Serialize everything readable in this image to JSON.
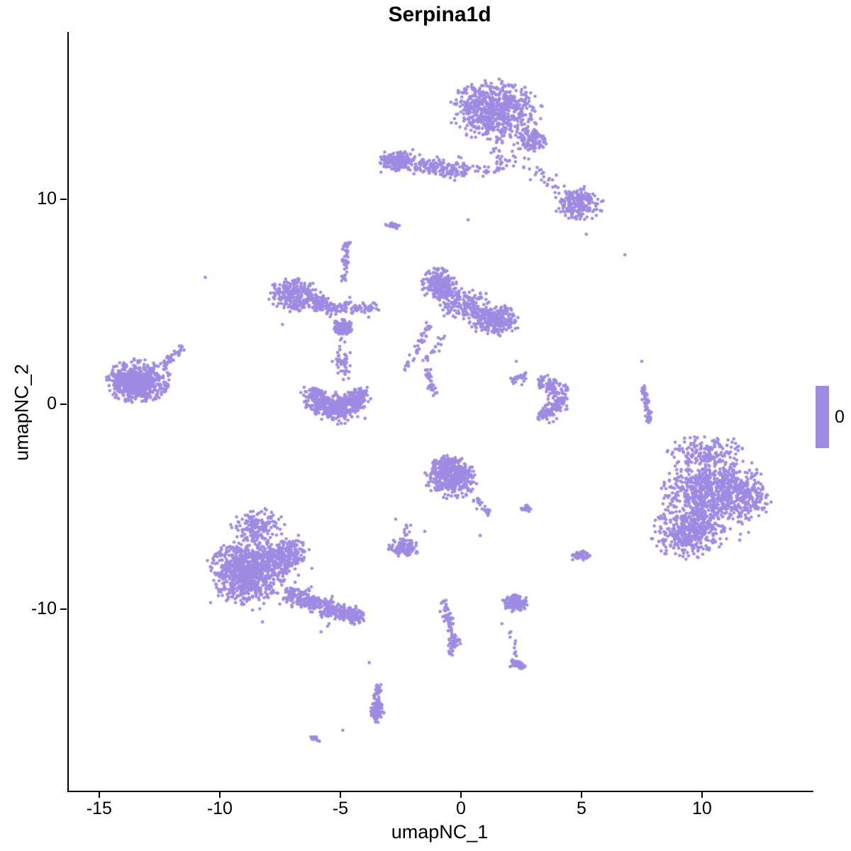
{
  "chart_data": {
    "type": "scatter",
    "title": "Serpina1d",
    "xlabel": "umapNC_1",
    "ylabel": "umapNC_2",
    "xlim": [
      -16.32,
      14.56
    ],
    "ylim": [
      -18.85,
      18.17
    ],
    "xticks": [
      -15,
      -10,
      -5,
      0,
      5,
      10
    ],
    "yticks": [
      -10,
      0,
      10
    ],
    "grid": false,
    "background": "#ffffff",
    "point_color": "#9E8BE2",
    "point_radius_px": 2.3,
    "legend": {
      "label": "0",
      "position": "right",
      "color": "#9E8BE2"
    },
    "note": "UMAP feature plot; all cells share expression value 0 (single purple color). Clusters described as generative blobs/strands/arcs in data coordinates.",
    "clusters": [
      {
        "t": "blob",
        "x": 1.4,
        "y": 14.3,
        "rx": 1.9,
        "ry": 1.5,
        "n": 700
      },
      {
        "t": "blob",
        "x": 2.9,
        "y": 12.9,
        "rx": 0.8,
        "ry": 0.6,
        "n": 110
      },
      {
        "t": "strand",
        "x1": 1.3,
        "y1": 13.0,
        "x2": 1.7,
        "y2": 11.4,
        "w": 0.3,
        "n": 25
      },
      {
        "t": "strand",
        "x1": 1.9,
        "y1": 12.2,
        "x2": 4.3,
        "y2": 10.6,
        "w": 0.5,
        "n": 35
      },
      {
        "t": "blob",
        "x": 4.9,
        "y": 9.8,
        "rx": 1.0,
        "ry": 0.85,
        "n": 210
      },
      {
        "t": "strand",
        "x1": -3.3,
        "y1": 11.9,
        "x2": 0.3,
        "y2": 11.4,
        "w": 0.5,
        "n": 260
      },
      {
        "t": "blob",
        "x": -2.6,
        "y": 11.9,
        "rx": 0.6,
        "ry": 0.5,
        "n": 120
      },
      {
        "t": "strand",
        "x1": 0.3,
        "y1": 11.6,
        "x2": 1.5,
        "y2": 11.3,
        "w": 0.3,
        "n": 20
      },
      {
        "t": "blob",
        "x": -2.85,
        "y": 8.7,
        "rx": 0.3,
        "ry": 0.15,
        "n": 28
      },
      {
        "t": "blob",
        "x": -6.9,
        "y": 5.4,
        "rx": 1.15,
        "ry": 0.85,
        "n": 260
      },
      {
        "t": "blob",
        "x": -5.9,
        "y": 5.0,
        "rx": 0.6,
        "ry": 0.5,
        "n": 80
      },
      {
        "t": "strand",
        "x1": -5.6,
        "y1": 4.7,
        "x2": -3.4,
        "y2": 4.7,
        "w": 0.35,
        "n": 110
      },
      {
        "t": "blob",
        "x": -4.9,
        "y": 3.75,
        "rx": 0.42,
        "ry": 0.42,
        "n": 130
      },
      {
        "t": "strand",
        "x1": -4.75,
        "y1": 7.9,
        "x2": -4.85,
        "y2": 6.0,
        "w": 0.15,
        "n": 45
      },
      {
        "t": "strand",
        "x1": -5.0,
        "y1": 3.3,
        "x2": -4.9,
        "y2": 1.9,
        "w": 0.25,
        "n": 16
      },
      {
        "t": "blob",
        "x": -0.9,
        "y": 5.8,
        "rx": 0.75,
        "ry": 0.85,
        "n": 260
      },
      {
        "t": "blob",
        "x": 1.4,
        "y": 4.1,
        "rx": 1.05,
        "ry": 0.75,
        "n": 280
      },
      {
        "t": "blob",
        "x": 0.2,
        "y": 4.9,
        "rx": 1.1,
        "ry": 0.9,
        "n": 160
      },
      {
        "t": "strand",
        "x1": -1.3,
        "y1": 3.9,
        "x2": -2.3,
        "y2": 1.7,
        "w": 0.2,
        "n": 40
      },
      {
        "t": "strand",
        "x1": -0.7,
        "y1": 3.3,
        "x2": -1.5,
        "y2": 2.1,
        "w": 0.15,
        "n": 20
      },
      {
        "t": "strand",
        "x1": -1.4,
        "y1": 1.7,
        "x2": -1.15,
        "y2": 0.5,
        "w": 0.15,
        "n": 35
      },
      {
        "t": "arc",
        "x": -5.15,
        "y": 0.55,
        "r": 0.95,
        "a1": 165,
        "a2": 375,
        "w": 0.6,
        "n": 430
      },
      {
        "t": "arc",
        "x": -5.15,
        "y": 0.5,
        "r": 0.55,
        "a1": 200,
        "a2": 340,
        "w": 0.45,
        "n": 160
      },
      {
        "t": "blob",
        "x": -4.9,
        "y": 1.9,
        "rx": 0.5,
        "ry": 0.75,
        "n": 30
      },
      {
        "t": "blob",
        "x": -13.4,
        "y": 1.15,
        "rx": 1.35,
        "ry": 1.05,
        "n": 520
      },
      {
        "t": "blob",
        "x": -13.6,
        "y": 1.0,
        "rx": 0.8,
        "ry": 0.6,
        "n": 200
      },
      {
        "t": "strand",
        "x1": -12.4,
        "y1": 1.9,
        "x2": -11.5,
        "y2": 2.85,
        "w": 0.18,
        "n": 40
      },
      {
        "t": "arc",
        "x": 3.35,
        "y": 0.3,
        "r": 0.8,
        "a1": -100,
        "a2": 100,
        "w": 0.5,
        "n": 210
      },
      {
        "t": "blob",
        "x": 2.4,
        "y": 1.3,
        "rx": 0.45,
        "ry": 0.35,
        "n": 30
      },
      {
        "t": "strand",
        "x1": 7.55,
        "y1": 1.0,
        "x2": 7.85,
        "y2": -0.9,
        "w": 0.12,
        "n": 50
      },
      {
        "t": "blob",
        "x": 10.4,
        "y": -4.3,
        "rx": 2.0,
        "ry": 1.9,
        "n": 750
      },
      {
        "t": "blob",
        "x": 9.4,
        "y": -6.3,
        "rx": 1.5,
        "ry": 1.2,
        "n": 380
      },
      {
        "t": "blob",
        "x": 10.2,
        "y": -2.3,
        "rx": 1.7,
        "ry": 0.8,
        "n": 140
      },
      {
        "t": "blob",
        "x": 12.0,
        "y": -4.5,
        "rx": 0.9,
        "ry": 1.2,
        "n": 120
      },
      {
        "t": "blob",
        "x": 10.3,
        "y": -4.5,
        "rx": 2.6,
        "ry": 2.6,
        "n": 100
      },
      {
        "t": "blob",
        "x": -0.4,
        "y": -3.6,
        "rx": 1.1,
        "ry": 1.0,
        "n": 340
      },
      {
        "t": "blob",
        "x": -0.5,
        "y": -3.0,
        "rx": 0.8,
        "ry": 0.5,
        "n": 120
      },
      {
        "t": "strand",
        "x1": 0.6,
        "y1": -4.6,
        "x2": 1.2,
        "y2": -5.4,
        "w": 0.2,
        "n": 25
      },
      {
        "t": "blob",
        "x": 2.7,
        "y": -5.1,
        "rx": 0.25,
        "ry": 0.18,
        "n": 18
      },
      {
        "t": "blob",
        "x": -2.4,
        "y": -7.0,
        "rx": 0.65,
        "ry": 0.45,
        "n": 100
      },
      {
        "t": "strand",
        "x1": -2.3,
        "y1": -6.4,
        "x2": -2.2,
        "y2": -5.9,
        "w": 0.1,
        "n": 10
      },
      {
        "t": "blob",
        "x": 4.95,
        "y": -7.4,
        "rx": 0.4,
        "ry": 0.28,
        "n": 50
      },
      {
        "t": "blob",
        "x": -8.8,
        "y": -8.1,
        "rx": 1.55,
        "ry": 1.6,
        "n": 850
      },
      {
        "t": "blob",
        "x": -8.4,
        "y": -5.9,
        "rx": 1.1,
        "ry": 0.8,
        "n": 170
      },
      {
        "t": "blob",
        "x": -7.2,
        "y": -7.3,
        "rx": 0.9,
        "ry": 0.9,
        "n": 180
      },
      {
        "t": "strand",
        "x1": -7.2,
        "y1": -9.2,
        "x2": -4.9,
        "y2": -10.2,
        "w": 0.55,
        "n": 280
      },
      {
        "t": "blob",
        "x": -4.5,
        "y": -10.3,
        "rx": 0.55,
        "ry": 0.45,
        "n": 110
      },
      {
        "t": "blob",
        "x": -8.6,
        "y": -8.0,
        "rx": 2.4,
        "ry": 2.6,
        "n": 130
      },
      {
        "t": "strand",
        "x1": -0.75,
        "y1": -9.6,
        "x2": -0.35,
        "y2": -11.3,
        "w": 0.18,
        "n": 45
      },
      {
        "t": "blob",
        "x": -0.3,
        "y": -11.6,
        "rx": 0.28,
        "ry": 0.35,
        "n": 45
      },
      {
        "t": "strand",
        "x1": -0.4,
        "y1": -11.9,
        "x2": -0.5,
        "y2": -12.4,
        "w": 0.1,
        "n": 8
      },
      {
        "t": "blob",
        "x": 2.25,
        "y": -9.7,
        "rx": 0.55,
        "ry": 0.42,
        "n": 140
      },
      {
        "t": "blob",
        "x": 2.35,
        "y": -12.7,
        "rx": 0.38,
        "ry": 0.28,
        "n": 60
      },
      {
        "t": "strand",
        "x1": 2.0,
        "y1": -10.9,
        "x2": 2.3,
        "y2": -12.3,
        "w": 0.12,
        "n": 10
      },
      {
        "t": "strand",
        "x1": -3.45,
        "y1": -13.6,
        "x2": -3.5,
        "y2": -14.7,
        "w": 0.14,
        "n": 40
      },
      {
        "t": "blob",
        "x": -3.5,
        "y": -15.0,
        "rx": 0.3,
        "ry": 0.5,
        "n": 60
      },
      {
        "t": "strand",
        "x1": -6.2,
        "y1": -16.25,
        "x2": -5.75,
        "y2": -16.4,
        "w": 0.1,
        "n": 14
      },
      {
        "t": "pts",
        "pts": [
          [
            6.8,
            7.3
          ],
          [
            -10.6,
            6.2
          ],
          [
            -4.9,
            -15.9
          ],
          [
            -3.8,
            -12.6
          ],
          [
            -1.5,
            -6.2
          ],
          [
            -2.7,
            -5.6
          ],
          [
            0.8,
            -6.4
          ],
          [
            -5.8,
            -11.1
          ],
          [
            1.7,
            -10.7
          ],
          [
            5.2,
            8.3
          ],
          [
            -0.9,
            2.6
          ],
          [
            2.3,
            2.1
          ],
          [
            -7.4,
            3.9
          ],
          [
            0.3,
            9.0
          ],
          [
            7.5,
            2.1
          ]
        ]
      }
    ]
  }
}
